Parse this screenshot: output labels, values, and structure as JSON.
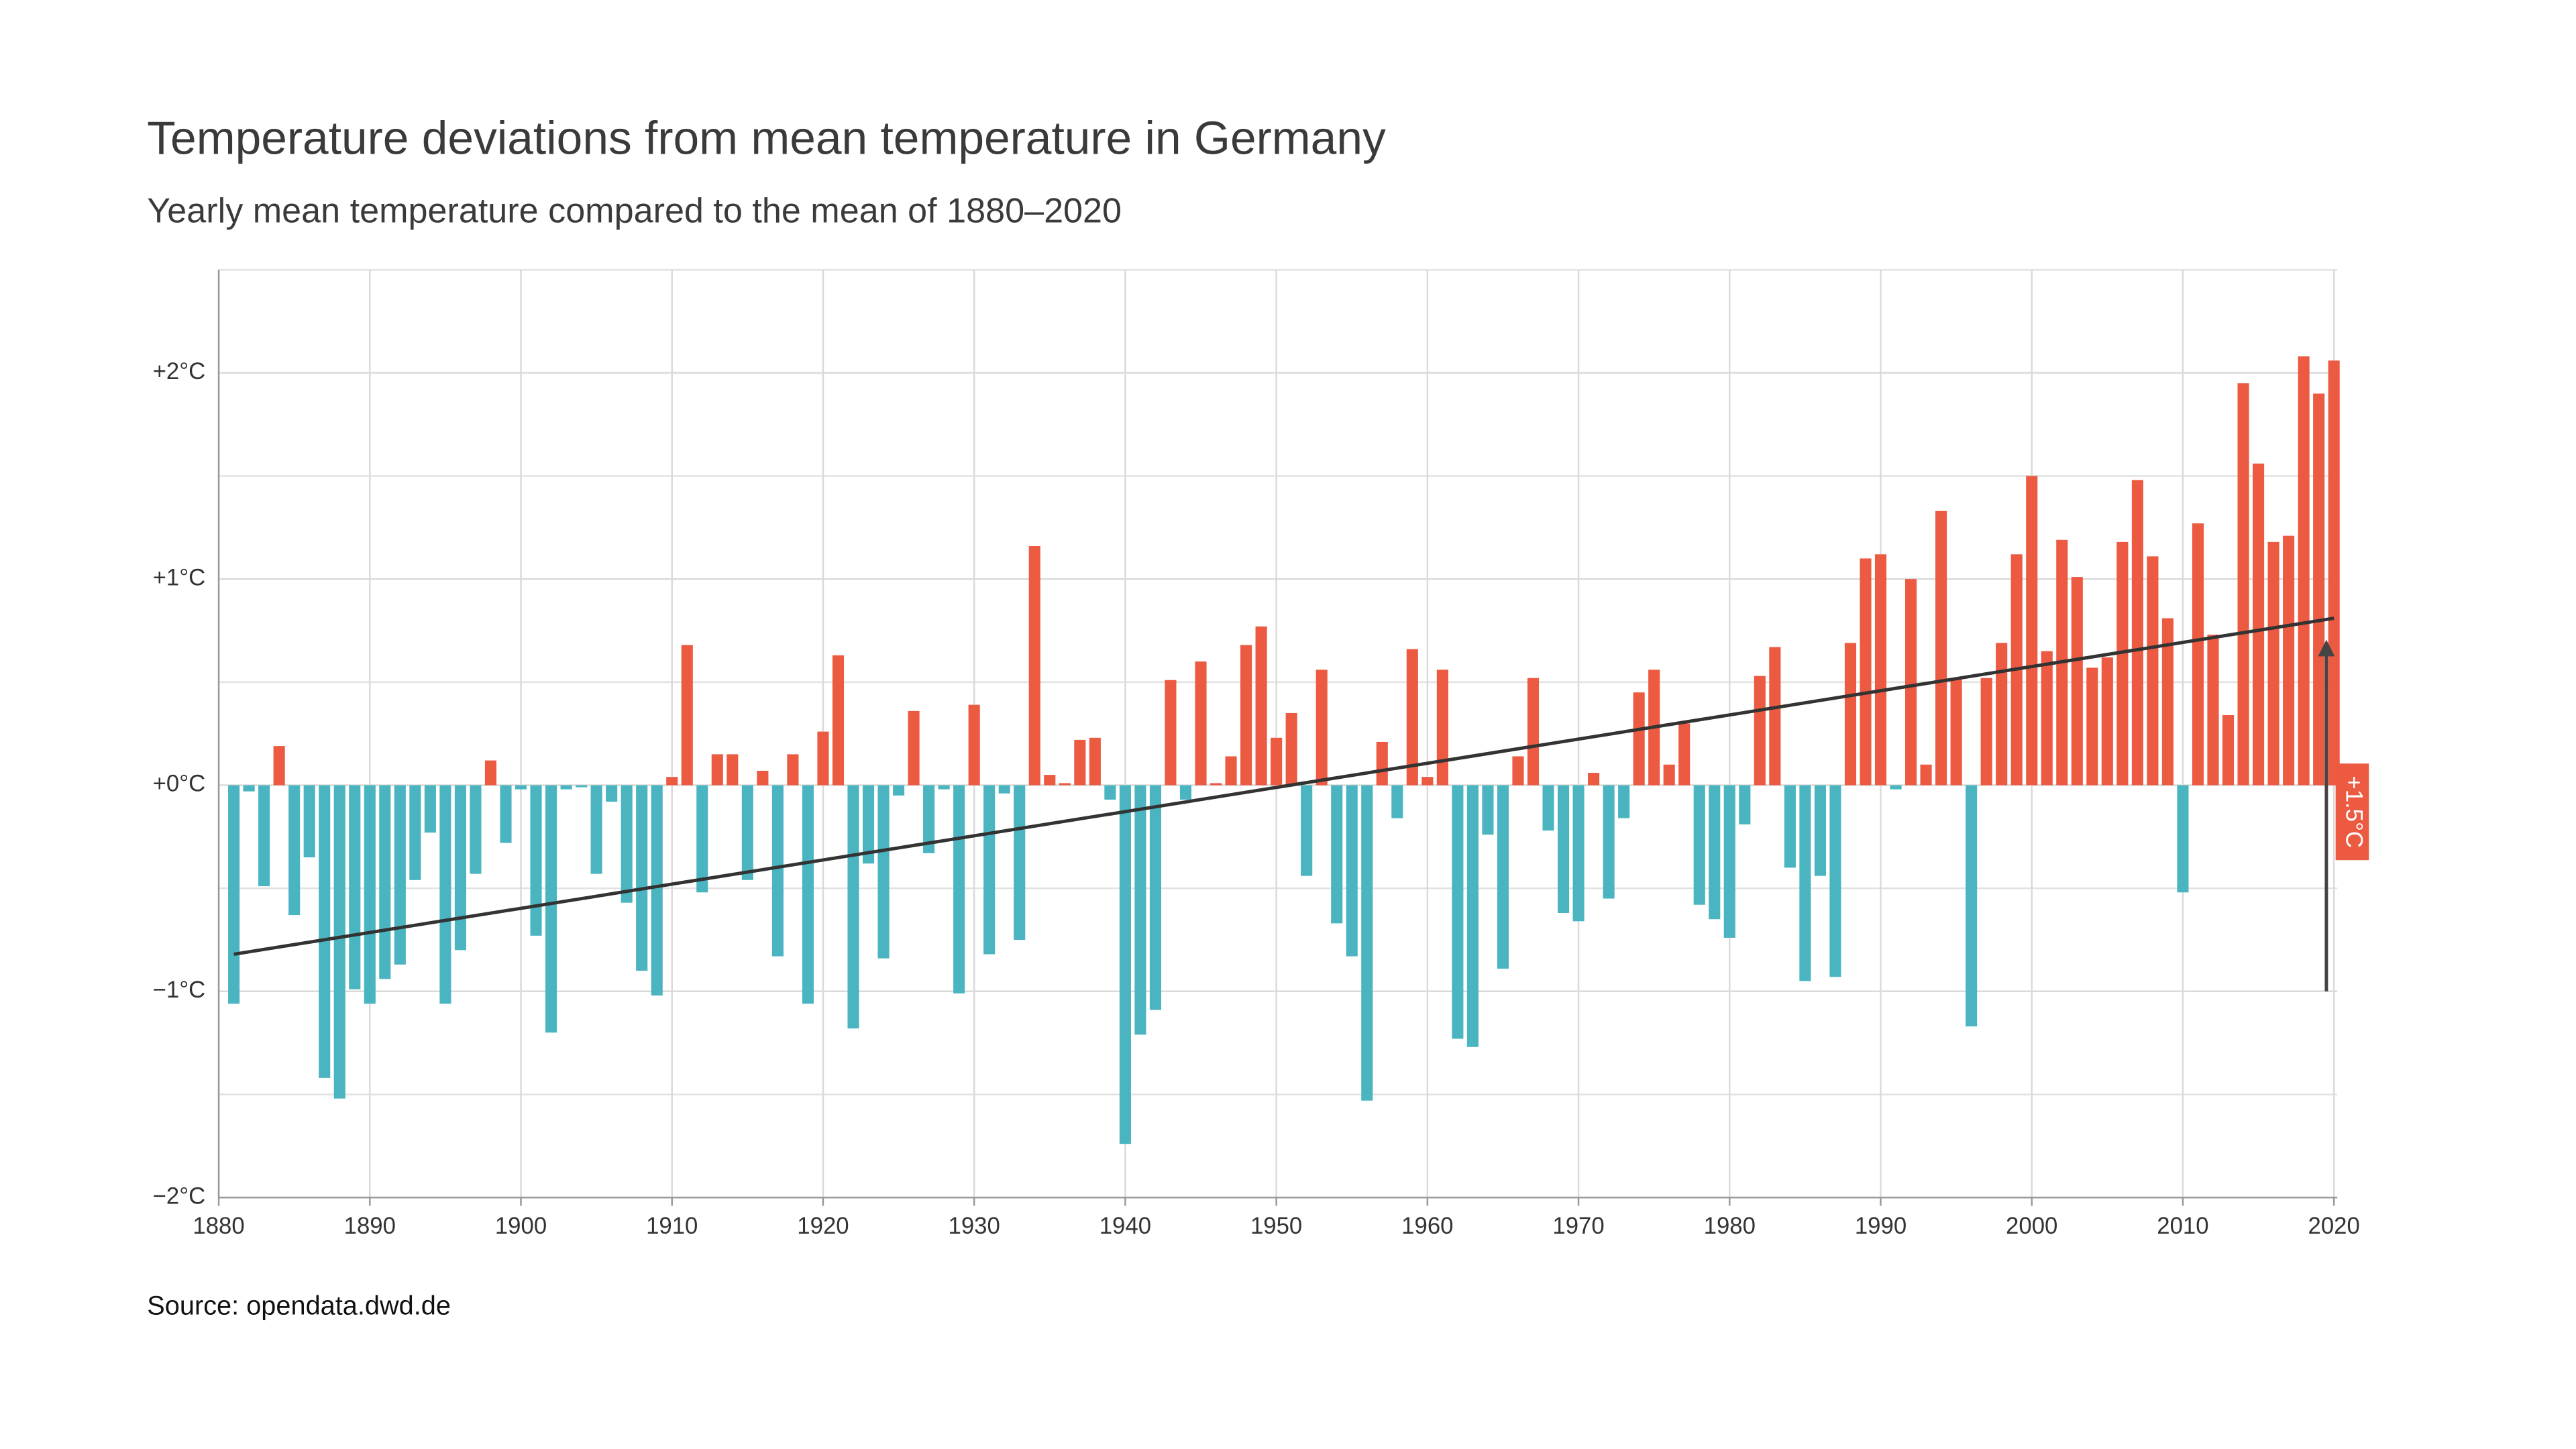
{
  "chart_data": {
    "type": "bar",
    "title": "Temperature deviations from mean temperature in Germany",
    "subtitle": "Yearly mean temperature compared to the mean of 1880–2020",
    "source": "Source: opendata.dwd.de",
    "positive_color": "#ec5a41",
    "negative_color": "#4ab5c1",
    "x": [
      1881,
      1882,
      1883,
      1884,
      1885,
      1886,
      1887,
      1888,
      1889,
      1890,
      1891,
      1892,
      1893,
      1894,
      1895,
      1896,
      1897,
      1898,
      1899,
      1900,
      1901,
      1902,
      1903,
      1904,
      1905,
      1906,
      1907,
      1908,
      1909,
      1910,
      1911,
      1912,
      1913,
      1914,
      1915,
      1916,
      1917,
      1918,
      1919,
      1920,
      1921,
      1922,
      1923,
      1924,
      1925,
      1926,
      1927,
      1928,
      1929,
      1930,
      1931,
      1932,
      1933,
      1934,
      1935,
      1936,
      1937,
      1938,
      1939,
      1940,
      1941,
      1942,
      1943,
      1944,
      1945,
      1946,
      1947,
      1948,
      1949,
      1950,
      1951,
      1952,
      1953,
      1954,
      1955,
      1956,
      1957,
      1958,
      1959,
      1960,
      1961,
      1962,
      1963,
      1964,
      1965,
      1966,
      1967,
      1968,
      1969,
      1970,
      1971,
      1972,
      1973,
      1974,
      1975,
      1976,
      1977,
      1978,
      1979,
      1980,
      1981,
      1982,
      1983,
      1984,
      1985,
      1986,
      1987,
      1988,
      1989,
      1990,
      1991,
      1992,
      1993,
      1994,
      1995,
      1996,
      1997,
      1998,
      1999,
      2000,
      2001,
      2002,
      2003,
      2004,
      2005,
      2006,
      2007,
      2008,
      2009,
      2010,
      2011,
      2012,
      2013,
      2014,
      2015,
      2016,
      2017,
      2018,
      2019,
      2020
    ],
    "values": [
      -1.06,
      -0.03,
      -0.49,
      0.19,
      -0.63,
      -0.35,
      -1.42,
      -1.52,
      -0.99,
      -1.06,
      -0.94,
      -0.87,
      -0.46,
      -0.23,
      -1.06,
      -0.8,
      -0.43,
      0.12,
      -0.28,
      -0.02,
      -0.73,
      -1.2,
      -0.02,
      -0.01,
      -0.43,
      -0.08,
      -0.57,
      -0.9,
      -1.02,
      0.04,
      0.68,
      -0.52,
      0.15,
      0.15,
      -0.46,
      0.07,
      -0.83,
      0.15,
      -1.06,
      0.26,
      0.63,
      -1.18,
      -0.38,
      -0.84,
      -0.05,
      0.36,
      -0.33,
      -0.02,
      -1.01,
      0.39,
      -0.82,
      -0.04,
      -0.75,
      1.16,
      0.05,
      0.01,
      0.22,
      0.23,
      -0.07,
      -1.74,
      -1.21,
      -1.09,
      0.51,
      -0.07,
      0.6,
      0.01,
      0.14,
      0.68,
      0.77,
      0.23,
      0.35,
      -0.44,
      0.56,
      -0.67,
      -0.83,
      -1.53,
      0.21,
      -0.16,
      0.66,
      0.04,
      0.56,
      -1.23,
      -1.27,
      -0.24,
      -0.89,
      0.14,
      0.52,
      -0.22,
      -0.62,
      -0.66,
      0.06,
      -0.55,
      -0.16,
      0.45,
      0.56,
      0.1,
      0.3,
      -0.58,
      -0.65,
      -0.74,
      -0.19,
      0.53,
      0.67,
      -0.4,
      -0.95,
      -0.44,
      -0.93,
      0.69,
      1.1,
      1.12,
      -0.02,
      1.0,
      0.1,
      1.33,
      0.52,
      -1.17,
      0.52,
      0.69,
      1.12,
      1.5,
      0.65,
      1.19,
      1.01,
      0.57,
      0.62,
      1.18,
      1.48,
      1.11,
      0.81,
      -0.52,
      1.27,
      0.73,
      0.34,
      1.95,
      1.56,
      1.18,
      1.21,
      2.08,
      1.9,
      2.06
    ],
    "trend": {
      "x": [
        1881,
        2020
      ],
      "values": [
        -0.82,
        0.81
      ],
      "color": "#333333"
    },
    "annotation": {
      "text": "+1.5°C",
      "x": 2019.5,
      "y_from": -1,
      "y_to": 0.73,
      "color": "#ec5a41"
    },
    "xlim": [
      1880,
      2020
    ],
    "xticks": [
      1880,
      1890,
      1900,
      1910,
      1920,
      1930,
      1940,
      1950,
      1960,
      1970,
      1980,
      1990,
      2000,
      2010,
      2020
    ],
    "ylim": [
      -2,
      2.5
    ],
    "yticks": [
      {
        "value": -2,
        "label": "−2°C"
      },
      {
        "value": -1,
        "label": "−1°C"
      },
      {
        "value": 0,
        "label": "+0°C"
      },
      {
        "value": 1,
        "label": "+1°C"
      },
      {
        "value": 2,
        "label": "+2°C"
      }
    ],
    "minor_yticks": [
      -1.5,
      -0.5,
      0.5,
      1.5,
      2.5
    ],
    "grid": true
  }
}
